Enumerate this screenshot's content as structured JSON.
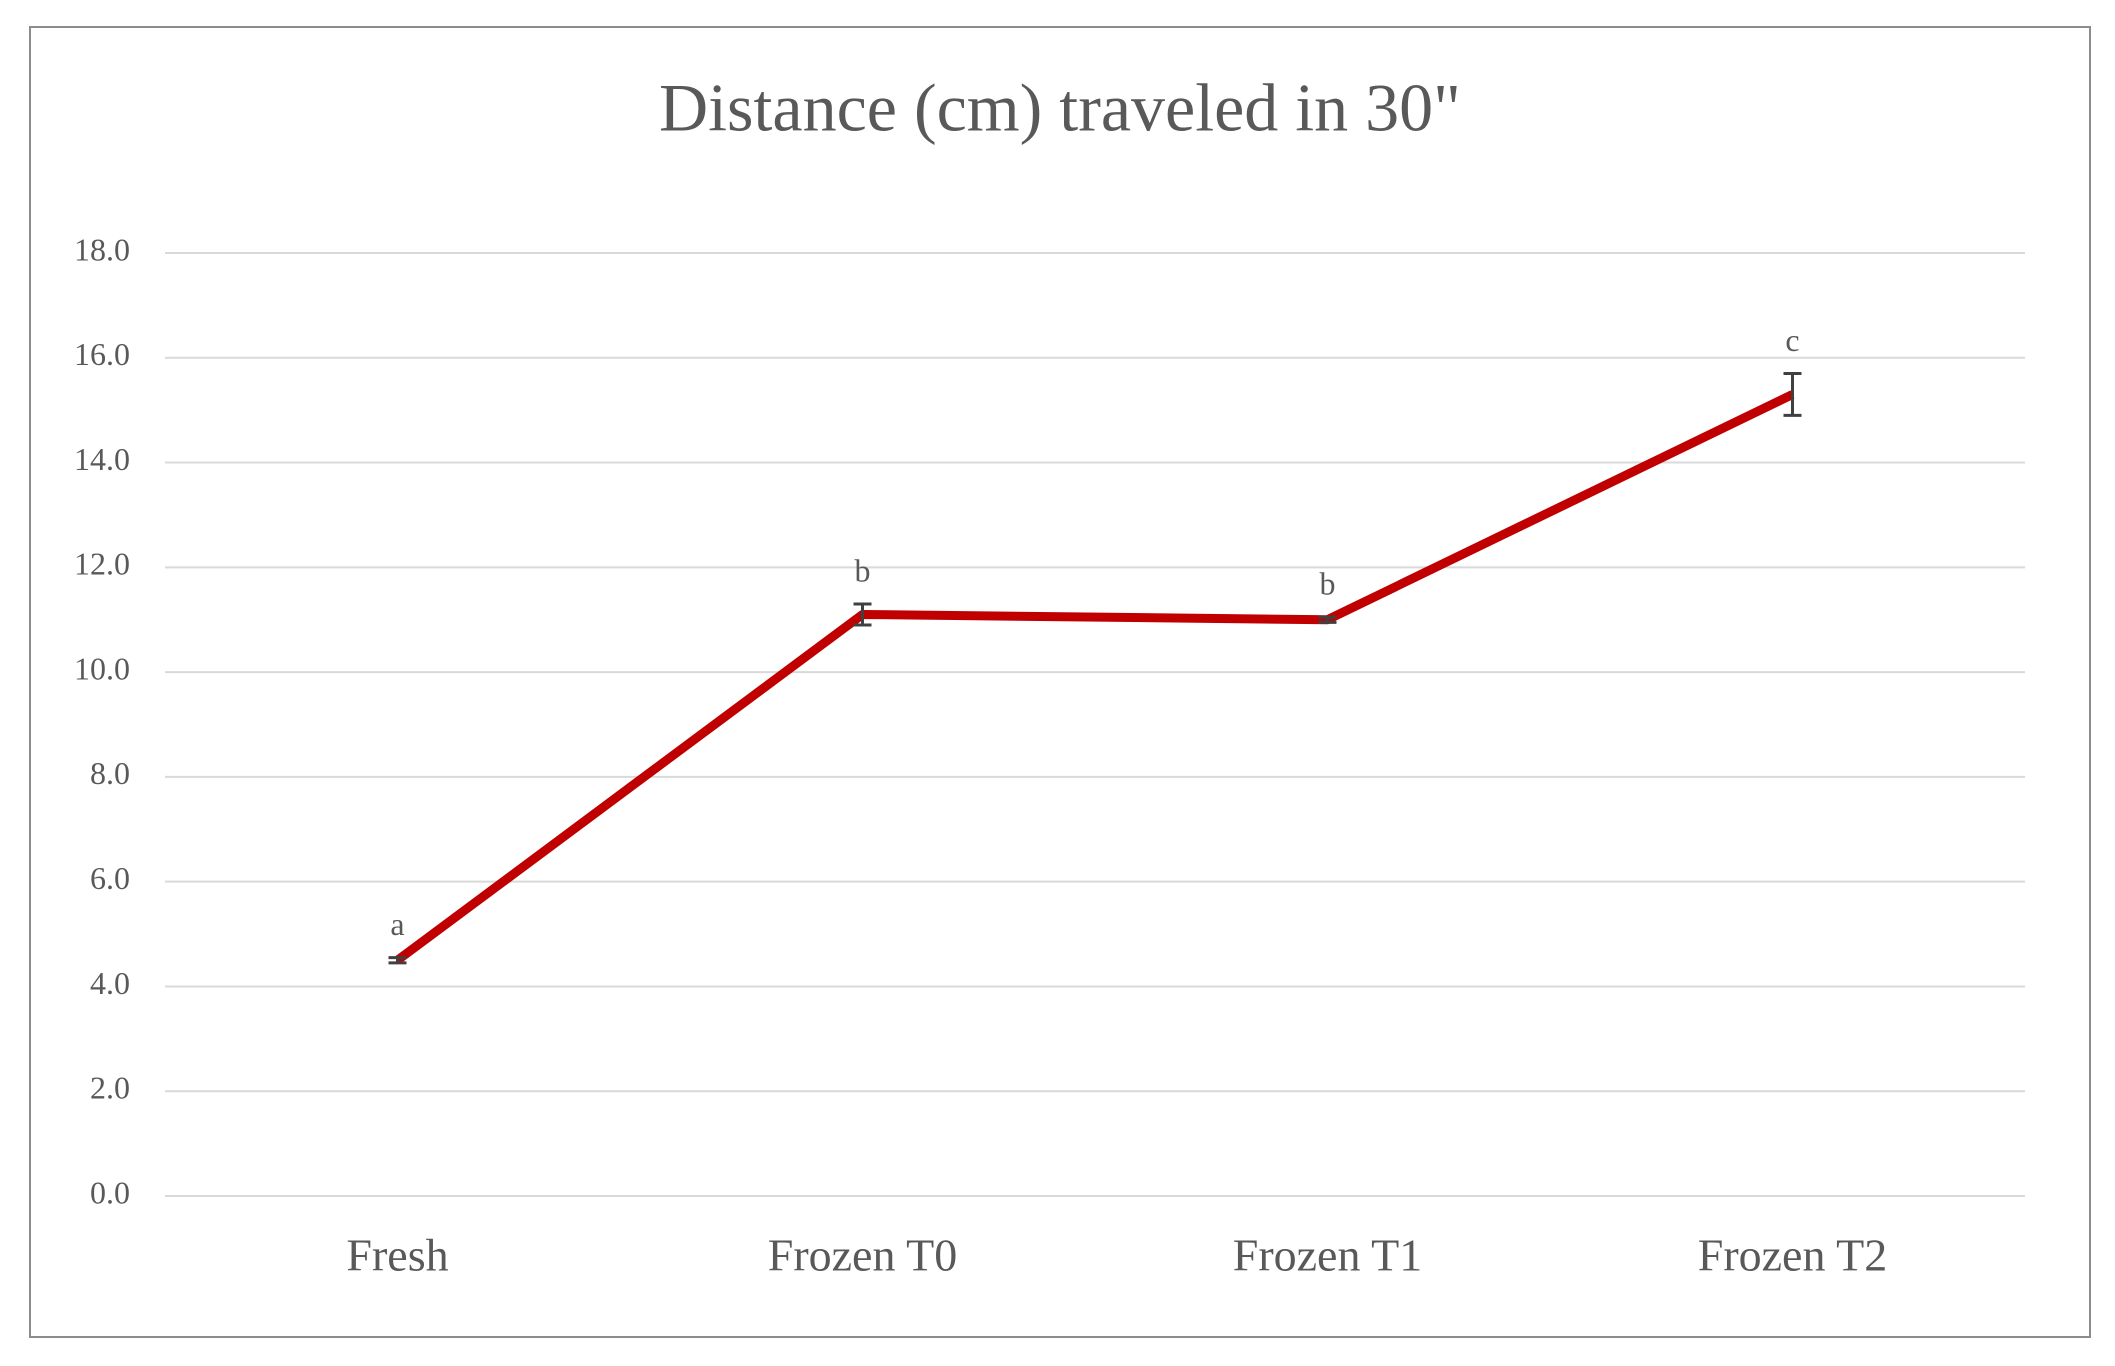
{
  "chart_data": {
    "type": "line",
    "title": "Distance (cm) traveled in 30\"",
    "categories": [
      "Fresh",
      "Frozen T0",
      "Frozen T1",
      "Frozen T2"
    ],
    "series": [
      {
        "color": "#c00000",
        "values": [
          4.5,
          11.1,
          11.0,
          15.3
        ],
        "errors": [
          0.05,
          0.2,
          0.05,
          0.4
        ],
        "annotations": [
          "a",
          "b",
          "b",
          "c"
        ]
      }
    ],
    "ylim": [
      0,
      18
    ],
    "yticks": [
      {
        "value": 0,
        "label": "0.0"
      },
      {
        "value": 2,
        "label": "2.0"
      },
      {
        "value": 4,
        "label": "4.0"
      },
      {
        "value": 6,
        "label": "6.0"
      },
      {
        "value": 8,
        "label": "8.0"
      },
      {
        "value": 10,
        "label": "10.0"
      },
      {
        "value": 12,
        "label": "12.0"
      },
      {
        "value": 14,
        "label": "14.0"
      },
      {
        "value": 16,
        "label": "16.0"
      },
      {
        "value": 18,
        "label": "18.0"
      }
    ],
    "grid": true
  }
}
